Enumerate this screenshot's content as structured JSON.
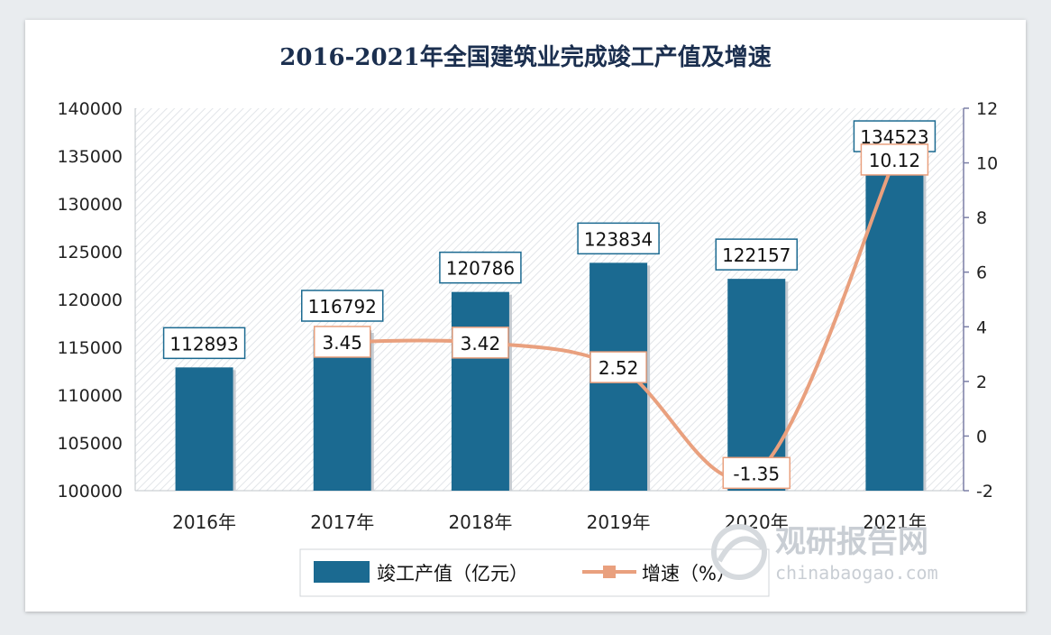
{
  "chart_data": {
    "type": "bar",
    "title": "2016-2021年全国建筑业完成竣工产值及增速",
    "categories": [
      "2016年",
      "2017年",
      "2018年",
      "2019年",
      "2020年",
      "2021年"
    ],
    "series": [
      {
        "name": "竣工产值（亿元）",
        "type": "bar",
        "axis": "left",
        "values": [
          112893,
          116792,
          120786,
          123834,
          122157,
          134523
        ]
      },
      {
        "name": "增速（%）",
        "type": "line",
        "axis": "right",
        "values": [
          null,
          3.45,
          3.42,
          2.52,
          -1.35,
          10.12
        ]
      }
    ],
    "y_left": {
      "min": 100000,
      "max": 140000,
      "step": 5000
    },
    "y_right": {
      "min": -2,
      "max": 12,
      "step": 2
    },
    "grid": false,
    "legend_position": "bottom",
    "colors": {
      "bar": "#1b6a91",
      "line": "#e9a07e",
      "title": "#1b2f4f",
      "right_axis": "#7b7fa6"
    }
  },
  "watermark": {
    "brand": "观研报告网",
    "url": "chinabaogao.com"
  }
}
